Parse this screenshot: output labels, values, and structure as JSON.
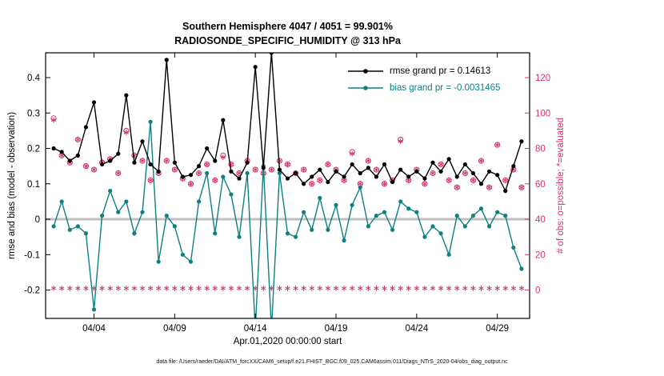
{
  "colors": {
    "rmse": "#000000",
    "bias": "#0e8080",
    "obs": "#d6336c",
    "zero_line": "#c0c0c0",
    "axis": "#000000"
  },
  "footer": "data file: /Users/raeder/DAI/ATM_forcXX/CAM6_setup/f.e21.FHIST_BGC.f09_025.CAM6assim.011/Diags_NTrS_2020-04/obs_diag_output.nc",
  "chart_data": {
    "type": "line",
    "title_line1": "Southern Hemisphere 4047 / 4051 = 99.901%",
    "title_line2": "RADIOSONDE_SPECIFIC_HUMIDITY @ 313 hPa",
    "xlabel": "Apr.01,2020 00:00:00 start",
    "ylabel_left": "rmse and bias (model - observation)",
    "ylabel_right": "# of obs: o=possible; *=evaluated",
    "legend": [
      {
        "label": "rmse grand pr = 0.14613",
        "color": "#000000"
      },
      {
        "label": "bias grand pr = -0.0031465",
        "color": "#0e8080"
      }
    ],
    "stats": {
      "rmse_grand_prior": 0.14613,
      "bias_grand_prior": -0.0031465,
      "obs_evaluated_total": 4047,
      "obs_possible_total": 4051,
      "evaluated_percent": 99.901
    },
    "grid": false,
    "legend_position": "top-right-inside",
    "xlim": [
      1,
      31
    ],
    "ylim_left": [
      -0.28,
      0.47
    ],
    "ylim_right": [
      -16,
      134
    ],
    "xticks": [
      {
        "day": 4,
        "label": "04/04"
      },
      {
        "day": 9,
        "label": "04/09"
      },
      {
        "day": 14,
        "label": "04/14"
      },
      {
        "day": 19,
        "label": "04/19"
      },
      {
        "day": 24,
        "label": "04/24"
      },
      {
        "day": 29,
        "label": "04/29"
      }
    ],
    "yticks_left": [
      {
        "value": -0.2,
        "label": "-0.2"
      },
      {
        "value": -0.1,
        "label": "-0.1"
      },
      {
        "value": 0,
        "label": "0"
      },
      {
        "value": 0.1,
        "label": "0.1"
      },
      {
        "value": 0.2,
        "label": "0.2"
      },
      {
        "value": 0.3,
        "label": "0.3"
      },
      {
        "value": 0.4,
        "label": "0.4"
      }
    ],
    "yticks_right": [
      {
        "value": 0,
        "label": "0"
      },
      {
        "value": 20,
        "label": "20"
      },
      {
        "value": 40,
        "label": "40"
      },
      {
        "value": 60,
        "label": "60"
      },
      {
        "value": 80,
        "label": "80"
      },
      {
        "value": 100,
        "label": "100"
      },
      {
        "value": 120,
        "label": "120"
      }
    ],
    "x_days": [
      1.5,
      2,
      2.5,
      3,
      3.5,
      4,
      4.5,
      5,
      5.5,
      6,
      6.5,
      7,
      7.5,
      8,
      8.5,
      9,
      9.5,
      10,
      10.5,
      11,
      11.5,
      12,
      12.5,
      13,
      13.5,
      14,
      14.5,
      15,
      15.5,
      16,
      16.5,
      17,
      17.5,
      18,
      18.5,
      19,
      19.5,
      20,
      20.5,
      21,
      21.5,
      22,
      22.5,
      23,
      23.5,
      24,
      24.5,
      25,
      25.5,
      26,
      26.5,
      27,
      27.5,
      28,
      28.5,
      29,
      29.5,
      30,
      30.5
    ],
    "series": [
      {
        "name": "rmse",
        "axis": "left",
        "color": "#000000",
        "marker": "dot",
        "line": true,
        "values": [
          0.2,
          0.19,
          0.165,
          0.18,
          0.26,
          0.33,
          0.155,
          0.165,
          0.185,
          0.35,
          0.16,
          0.22,
          0.155,
          0.135,
          0.45,
          0.16,
          0.12,
          0.125,
          0.15,
          0.2,
          0.165,
          0.28,
          0.135,
          0.115,
          0.16,
          0.43,
          0.145,
          0.47,
          0.14,
          0.115,
          0.13,
          0.1,
          0.12,
          0.14,
          0.105,
          0.135,
          0.12,
          0.155,
          0.13,
          0.145,
          0.12,
          0.155,
          0.105,
          0.14,
          0.12,
          0.135,
          0.115,
          0.16,
          0.135,
          0.17,
          0.12,
          0.155,
          0.13,
          0.1,
          0.135,
          0.125,
          0.08,
          0.15,
          0.22
        ]
      },
      {
        "name": "bias",
        "axis": "left",
        "color": "#0e8080",
        "marker": "dot",
        "line": true,
        "values": [
          -0.02,
          0.05,
          -0.03,
          -0.02,
          -0.04,
          -0.255,
          0.01,
          0.08,
          0.02,
          0.05,
          -0.04,
          0.02,
          0.275,
          -0.12,
          0.01,
          -0.02,
          -0.1,
          -0.12,
          0.05,
          0.13,
          -0.04,
          0.12,
          0.07,
          -0.05,
          0.13,
          -0.31,
          0.15,
          -0.31,
          0.13,
          -0.04,
          -0.05,
          0.02,
          -0.03,
          0.06,
          -0.03,
          0.04,
          -0.06,
          0.04,
          0.09,
          -0.02,
          0.01,
          0.02,
          -0.03,
          0.05,
          0.03,
          0.02,
          -0.05,
          -0.02,
          -0.04,
          -0.1,
          0.01,
          -0.02,
          0.01,
          0.03,
          -0.02,
          0.02,
          0.01,
          -0.08,
          -0.14
        ]
      },
      {
        "name": "n_possible",
        "axis": "right",
        "color": "#d6336c",
        "marker": "circle",
        "line": false,
        "values": [
          97,
          76,
          72,
          85,
          70,
          68,
          72,
          74,
          66,
          90,
          76,
          73,
          62,
          66,
          73,
          68,
          63,
          60,
          66,
          71,
          62,
          76,
          71,
          66,
          73,
          68,
          66,
          68,
          73,
          71,
          66,
          68,
          60,
          62,
          71,
          68,
          62,
          78,
          60,
          73,
          68,
          60,
          62,
          85,
          62,
          68,
          60,
          66,
          71,
          62,
          58,
          66,
          62,
          73,
          58,
          82,
          62,
          68,
          58
        ]
      },
      {
        "name": "n_evaluated",
        "axis": "right",
        "color": "#d6336c",
        "marker": "asterisk",
        "line": false,
        "values": [
          96,
          76,
          72,
          85,
          70,
          68,
          72,
          74,
          66,
          89,
          76,
          73,
          62,
          66,
          73,
          68,
          63,
          60,
          66,
          71,
          62,
          75,
          71,
          66,
          73,
          68,
          66,
          68,
          73,
          71,
          66,
          68,
          60,
          62,
          71,
          68,
          62,
          77,
          60,
          73,
          68,
          60,
          62,
          84,
          62,
          68,
          60,
          66,
          71,
          62,
          58,
          66,
          62,
          73,
          58,
          82,
          62,
          68,
          58
        ]
      },
      {
        "name": "n_lower_band",
        "axis": "right",
        "color": "#d6336c",
        "marker": "asterisk",
        "line": false,
        "values": [
          1,
          1,
          1,
          1,
          1,
          1,
          1,
          1,
          1,
          1,
          1,
          1,
          1,
          1,
          1,
          1,
          1,
          1,
          1,
          1,
          1,
          1,
          1,
          1,
          1,
          1,
          1,
          1,
          1,
          1,
          1,
          1,
          1,
          1,
          1,
          1,
          1,
          1,
          1,
          1,
          1,
          1,
          1,
          1,
          1,
          1,
          1,
          1,
          1,
          1,
          1,
          1,
          1,
          1,
          1,
          1,
          1,
          1,
          1
        ]
      }
    ]
  }
}
